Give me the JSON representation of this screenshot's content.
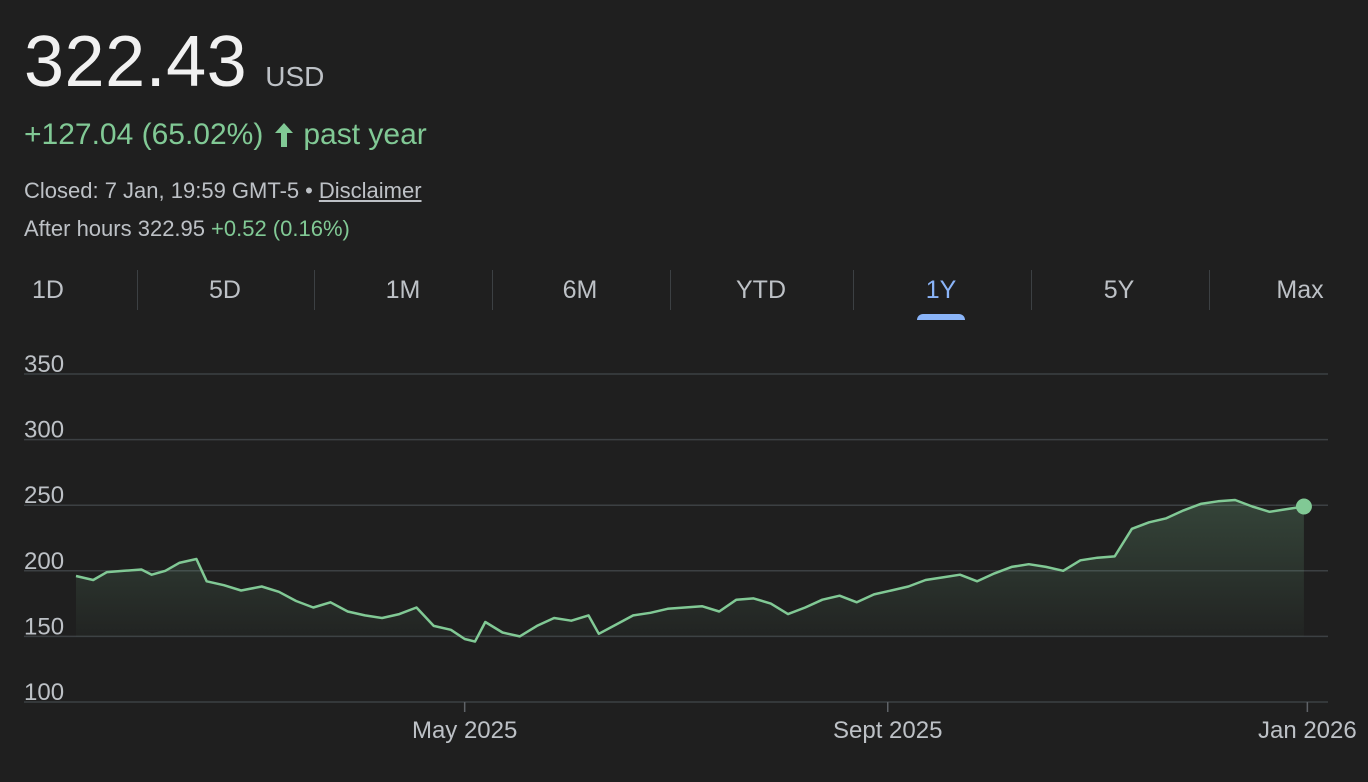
{
  "header": {
    "price": "322.43",
    "currency": "USD",
    "change": "+127.04 (65.02%)",
    "change_period": "past year",
    "closed_text": "Closed: 7 Jan, 19:59 GMT-5",
    "separator": "•",
    "disclaimer_label": "Disclaimer",
    "after_hours_label": "After hours 322.95",
    "after_hours_change": "+0.52 (0.16%)"
  },
  "tabs": [
    {
      "label": "1D",
      "active": false
    },
    {
      "label": "5D",
      "active": false
    },
    {
      "label": "1M",
      "active": false
    },
    {
      "label": "6M",
      "active": false
    },
    {
      "label": "YTD",
      "active": false
    },
    {
      "label": "1Y",
      "active": true
    },
    {
      "label": "5Y",
      "active": false
    },
    {
      "label": "Max",
      "active": false
    }
  ],
  "colors": {
    "line": "#81c995",
    "accent": "#8ab4f8",
    "grid": "#3c4043",
    "background": "#1f1f1f"
  },
  "chart_data": {
    "type": "area",
    "ylim": [
      100,
      350
    ],
    "yticks": [
      350,
      300,
      250,
      200,
      150,
      100
    ],
    "xlim": [
      "2025-01-08",
      "2026-01-07"
    ],
    "xticks": [
      {
        "label": "May 2025",
        "date": "2025-05-01"
      },
      {
        "label": "Sept 2025",
        "date": "2025-09-01"
      },
      {
        "label": "Jan 2026",
        "date": "2026-01-01"
      }
    ],
    "grid": true,
    "series": [
      {
        "values": [
          [
            "2025-01-08",
            196
          ],
          [
            "2025-01-13",
            193
          ],
          [
            "2025-01-17",
            199
          ],
          [
            "2025-01-22",
            200
          ],
          [
            "2025-01-27",
            201
          ],
          [
            "2025-01-30",
            197
          ],
          [
            "2025-02-03",
            200
          ],
          [
            "2025-02-07",
            206
          ],
          [
            "2025-02-12",
            209
          ],
          [
            "2025-02-15",
            192
          ],
          [
            "2025-02-20",
            189
          ],
          [
            "2025-02-25",
            185
          ],
          [
            "2025-03-03",
            188
          ],
          [
            "2025-03-08",
            184
          ],
          [
            "2025-03-13",
            177
          ],
          [
            "2025-03-18",
            172
          ],
          [
            "2025-03-23",
            176
          ],
          [
            "2025-03-28",
            169
          ],
          [
            "2025-04-02",
            166
          ],
          [
            "2025-04-07",
            164
          ],
          [
            "2025-04-12",
            167
          ],
          [
            "2025-04-17",
            172
          ],
          [
            "2025-04-22",
            158
          ],
          [
            "2025-04-27",
            155
          ],
          [
            "2025-05-01",
            148
          ],
          [
            "2025-05-04",
            146
          ],
          [
            "2025-05-07",
            161
          ],
          [
            "2025-05-12",
            153
          ],
          [
            "2025-05-17",
            150
          ],
          [
            "2025-05-22",
            158
          ],
          [
            "2025-05-27",
            164
          ],
          [
            "2025-06-01",
            162
          ],
          [
            "2025-06-06",
            166
          ],
          [
            "2025-06-09",
            152
          ],
          [
            "2025-06-14",
            159
          ],
          [
            "2025-06-19",
            166
          ],
          [
            "2025-06-24",
            168
          ],
          [
            "2025-06-29",
            171
          ],
          [
            "2025-07-04",
            172
          ],
          [
            "2025-07-09",
            173
          ],
          [
            "2025-07-14",
            169
          ],
          [
            "2025-07-19",
            178
          ],
          [
            "2025-07-24",
            179
          ],
          [
            "2025-07-29",
            175
          ],
          [
            "2025-08-03",
            167
          ],
          [
            "2025-08-08",
            172
          ],
          [
            "2025-08-13",
            178
          ],
          [
            "2025-08-18",
            181
          ],
          [
            "2025-08-23",
            176
          ],
          [
            "2025-08-28",
            182
          ],
          [
            "2025-09-02",
            185
          ],
          [
            "2025-09-07",
            188
          ],
          [
            "2025-09-12",
            193
          ],
          [
            "2025-09-17",
            195
          ],
          [
            "2025-09-22",
            197
          ],
          [
            "2025-09-27",
            192
          ],
          [
            "2025-10-02",
            198
          ],
          [
            "2025-10-07",
            203
          ],
          [
            "2025-10-12",
            205
          ],
          [
            "2025-10-17",
            203
          ],
          [
            "2025-10-22",
            200
          ],
          [
            "2025-10-27",
            208
          ],
          [
            "2025-11-01",
            210
          ],
          [
            "2025-11-06",
            211
          ],
          [
            "2025-11-11",
            232
          ],
          [
            "2025-11-16",
            237
          ],
          [
            "2025-11-21",
            240
          ],
          [
            "2025-11-26",
            246
          ],
          [
            "2025-12-01",
            251
          ],
          [
            "2025-12-06",
            253
          ],
          [
            "2025-12-11",
            254
          ],
          [
            "2025-12-16",
            249
          ],
          [
            "2025-12-21",
            245
          ],
          [
            "2025-12-26",
            247
          ],
          [
            "2025-12-31",
            249
          ]
        ]
      }
    ]
  }
}
